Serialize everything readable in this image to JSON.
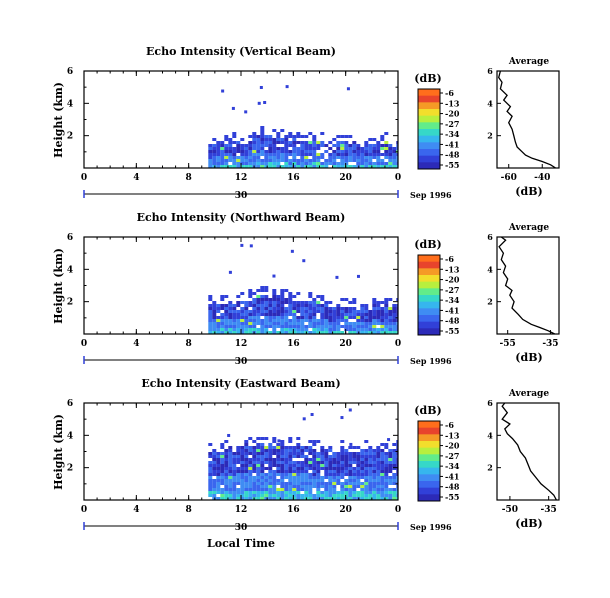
{
  "footer": {
    "xlabel": "Local Time"
  },
  "colorscale": [
    "#2c2ab8",
    "#3140d8",
    "#3a66ee",
    "#3f8cf3",
    "#36b6ee",
    "#36d8c8",
    "#62ec8a",
    "#b8ef3e",
    "#f2de2c",
    "#f59a26",
    "#e8442c",
    "#ff6e1c"
  ],
  "chart_data": [
    {
      "type": "heatmap",
      "title": "Echo Intensity (Vertical Beam)",
      "ylabel": "Height (km)",
      "xticks": [
        "0",
        "4",
        "8",
        "12",
        "16",
        "20",
        "0"
      ],
      "date_day": "30",
      "date_label": "Sep 1996",
      "xlim": [
        0,
        24
      ],
      "ylim": [
        0,
        6
      ],
      "yticks": [
        "2",
        "4",
        "6"
      ],
      "colorbar_label": "(dB)",
      "colorbar_ticks": [
        "-6",
        "-13",
        "-20",
        "-27",
        "-34",
        "-41",
        "-48",
        "-55"
      ],
      "data_start_hour": 9.5,
      "echo_tops": [
        {
          "t": 9.5,
          "h": 1.5
        },
        {
          "t": 11,
          "h": 1.6
        },
        {
          "t": 12.5,
          "h": 1.8
        },
        {
          "t": 13.5,
          "h": 2.3
        },
        {
          "t": 14,
          "h": 2.0
        },
        {
          "t": 16,
          "h": 1.9
        },
        {
          "t": 18,
          "h": 1.7
        },
        {
          "t": 20,
          "h": 1.6
        },
        {
          "t": 22,
          "h": 1.7
        },
        {
          "t": 24,
          "h": 1.6
        }
      ],
      "average_profile": {
        "title": "Average",
        "xlabel": "(dB)",
        "xticks": [
          "-60",
          "-40"
        ],
        "xlim": [
          -67,
          -30
        ],
        "ylim": [
          0,
          6
        ],
        "yticks": [
          "2",
          "4",
          "6"
        ],
        "points": [
          {
            "db": -32,
            "h": 0.0
          },
          {
            "db": -35,
            "h": 0.2
          },
          {
            "db": -40,
            "h": 0.4
          },
          {
            "db": -46,
            "h": 0.6
          },
          {
            "db": -50,
            "h": 0.8
          },
          {
            "db": -52,
            "h": 1.0
          },
          {
            "db": -55,
            "h": 1.3
          },
          {
            "db": -56,
            "h": 1.6
          },
          {
            "db": -57,
            "h": 2.0
          },
          {
            "db": -58,
            "h": 2.4
          },
          {
            "db": -60,
            "h": 2.8
          },
          {
            "db": -58,
            "h": 3.2
          },
          {
            "db": -61,
            "h": 3.5
          },
          {
            "db": -59,
            "h": 3.8
          },
          {
            "db": -63,
            "h": 4.2
          },
          {
            "db": -61,
            "h": 4.5
          },
          {
            "db": -65,
            "h": 4.9
          },
          {
            "db": -64,
            "h": 5.3
          },
          {
            "db": -66,
            "h": 5.6
          },
          {
            "db": -65,
            "h": 6.0
          }
        ]
      }
    },
    {
      "type": "heatmap",
      "title": "Echo Intensity (Northward Beam)",
      "ylabel": "Height (km)",
      "xticks": [
        "0",
        "4",
        "8",
        "12",
        "16",
        "20",
        "0"
      ],
      "date_day": "30",
      "date_label": "Sep 1996",
      "xlim": [
        0,
        24
      ],
      "ylim": [
        0,
        6
      ],
      "yticks": [
        "2",
        "4",
        "6"
      ],
      "colorbar_label": "(dB)",
      "colorbar_ticks": [
        "-6",
        "-13",
        "-20",
        "-27",
        "-34",
        "-41",
        "-48",
        "-55"
      ],
      "data_start_hour": 9.5,
      "echo_tops": [
        {
          "t": 9.5,
          "h": 1.9
        },
        {
          "t": 11,
          "h": 2.0
        },
        {
          "t": 12.5,
          "h": 2.2
        },
        {
          "t": 13.5,
          "h": 2.6
        },
        {
          "t": 15,
          "h": 2.3
        },
        {
          "t": 17,
          "h": 2.1
        },
        {
          "t": 19,
          "h": 1.8
        },
        {
          "t": 21,
          "h": 1.6
        },
        {
          "t": 23,
          "h": 1.9
        },
        {
          "t": 24,
          "h": 1.7
        }
      ],
      "average_profile": {
        "title": "Average",
        "xlabel": "(dB)",
        "xticks": [
          "-55",
          "-35"
        ],
        "xlim": [
          -60,
          -31
        ],
        "ylim": [
          0,
          6
        ],
        "yticks": [
          "2",
          "4",
          "6"
        ],
        "points": [
          {
            "db": -33,
            "h": 0.0
          },
          {
            "db": -36,
            "h": 0.2
          },
          {
            "db": -40,
            "h": 0.4
          },
          {
            "db": -44,
            "h": 0.6
          },
          {
            "db": -48,
            "h": 0.9
          },
          {
            "db": -50,
            "h": 1.2
          },
          {
            "db": -53,
            "h": 1.6
          },
          {
            "db": -52,
            "h": 2.0
          },
          {
            "db": -54,
            "h": 2.4
          },
          {
            "db": -53,
            "h": 2.7
          },
          {
            "db": -56,
            "h": 3.0
          },
          {
            "db": -55,
            "h": 3.4
          },
          {
            "db": -57,
            "h": 3.8
          },
          {
            "db": -56,
            "h": 4.2
          },
          {
            "db": -58,
            "h": 4.6
          },
          {
            "db": -57,
            "h": 5.0
          },
          {
            "db": -59,
            "h": 5.4
          },
          {
            "db": -56,
            "h": 5.8
          },
          {
            "db": -58,
            "h": 6.0
          }
        ]
      }
    },
    {
      "type": "heatmap",
      "title": "Echo Intensity (Eastward Beam)",
      "ylabel": "Height (km)",
      "xticks": [
        "0",
        "4",
        "8",
        "12",
        "16",
        "20",
        "0"
      ],
      "date_day": "30",
      "date_label": "Sep 1996",
      "xlim": [
        0,
        24
      ],
      "ylim": [
        0,
        6
      ],
      "yticks": [
        "2",
        "4",
        "6"
      ],
      "colorbar_label": "(dB)",
      "colorbar_ticks": [
        "-6",
        "-13",
        "-20",
        "-27",
        "-34",
        "-41",
        "-48",
        "-55"
      ],
      "data_start_hour": 9.5,
      "echo_tops": [
        {
          "t": 9.5,
          "h": 3.0
        },
        {
          "t": 11,
          "h": 3.3
        },
        {
          "t": 12.5,
          "h": 3.5
        },
        {
          "t": 14,
          "h": 3.6
        },
        {
          "t": 16,
          "h": 3.4
        },
        {
          "t": 18,
          "h": 3.2
        },
        {
          "t": 20,
          "h": 3.1
        },
        {
          "t": 22,
          "h": 3.3
        },
        {
          "t": 24,
          "h": 3.2
        }
      ],
      "average_profile": {
        "title": "Average",
        "xlabel": "(dB)",
        "xticks": [
          "-50",
          "-35"
        ],
        "xlim": [
          -55,
          -31
        ],
        "ylim": [
          0,
          6
        ],
        "yticks": [
          "2",
          "4",
          "6"
        ],
        "points": [
          {
            "db": -32,
            "h": 0.0
          },
          {
            "db": -33,
            "h": 0.3
          },
          {
            "db": -35,
            "h": 0.6
          },
          {
            "db": -38,
            "h": 1.0
          },
          {
            "db": -40,
            "h": 1.4
          },
          {
            "db": -42,
            "h": 1.8
          },
          {
            "db": -43,
            "h": 2.2
          },
          {
            "db": -44,
            "h": 2.6
          },
          {
            "db": -46,
            "h": 3.0
          },
          {
            "db": -47,
            "h": 3.4
          },
          {
            "db": -49,
            "h": 3.8
          },
          {
            "db": -51,
            "h": 4.1
          },
          {
            "db": -52,
            "h": 4.4
          },
          {
            "db": -50,
            "h": 4.7
          },
          {
            "db": -53,
            "h": 5.0
          },
          {
            "db": -51,
            "h": 5.4
          },
          {
            "db": -53,
            "h": 5.8
          },
          {
            "db": -52,
            "h": 6.0
          }
        ]
      }
    }
  ]
}
